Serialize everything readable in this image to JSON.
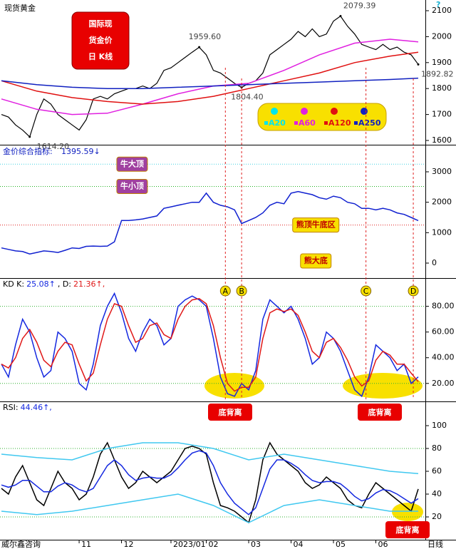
{
  "chart_data": [
    {
      "type": "line",
      "title": "现货黄金",
      "badge": [
        "国际现",
        "货金价",
        "日 K线"
      ],
      "ylim": [
        1583.5,
        2141.2
      ],
      "yticks": [
        1600,
        1700,
        1800,
        1900,
        2000,
        2100
      ],
      "series": [
        {
          "color": "#000000",
          "values": [
            1700,
            1690,
            1660,
            1640,
            1614,
            1700,
            1760,
            1740,
            1700,
            1680,
            1660,
            1640,
            1680,
            1760,
            1770,
            1760,
            1780,
            1790,
            1800,
            1800,
            1810,
            1800,
            1820,
            1870,
            1880,
            1900,
            1920,
            1940,
            1959,
            1930,
            1870,
            1860,
            1840,
            1820,
            1804,
            1820,
            1830,
            1860,
            1930,
            1950,
            1970,
            1990,
            2020,
            2000,
            2030,
            2000,
            2010,
            2060,
            2079,
            2040,
            2010,
            1970,
            1960,
            1950,
            1970,
            1950,
            1960,
            1940,
            1930,
            1893
          ]
        },
        {
          "color": "#e020e0",
          "x": [
            0,
            5,
            10,
            15,
            20,
            25,
            30,
            35,
            40,
            45,
            50,
            55,
            59
          ],
          "values": [
            1760,
            1720,
            1700,
            1705,
            1740,
            1780,
            1810,
            1820,
            1870,
            1930,
            1975,
            1990,
            1980
          ]
        },
        {
          "color": "#e01010",
          "x": [
            0,
            5,
            10,
            15,
            20,
            25,
            30,
            35,
            40,
            45,
            50,
            55,
            59
          ],
          "values": [
            1830,
            1790,
            1765,
            1750,
            1740,
            1750,
            1770,
            1800,
            1830,
            1860,
            1900,
            1925,
            1940
          ]
        },
        {
          "color": "#1020c0",
          "x": [
            0,
            5,
            10,
            15,
            20,
            25,
            30,
            35,
            40,
            45,
            50,
            55,
            59
          ],
          "values": [
            1830,
            1815,
            1805,
            1800,
            1800,
            1805,
            1810,
            1815,
            1820,
            1825,
            1830,
            1835,
            1840
          ]
        }
      ],
      "legend": [
        {
          "name": "A20",
          "color": "#00e5ee"
        },
        {
          "name": "A60",
          "color": "#e020e0"
        },
        {
          "name": "A120",
          "color": "#e01010"
        },
        {
          "name": "A250",
          "color": "#1020c0"
        }
      ],
      "annotations": [
        {
          "label": "1614.20",
          "x": 4,
          "value": 1614.2
        },
        {
          "label": "1959.60",
          "x": 28,
          "value": 1959.6
        },
        {
          "label": "1804.40",
          "x": 34,
          "value": 1804.4
        },
        {
          "label": "2079.39",
          "x": 48,
          "value": 2079.39
        },
        {
          "label": "1892.82",
          "x": 59,
          "value": 1892.82
        }
      ]
    },
    {
      "type": "line",
      "title": "金价综合指标:",
      "value_label": "1395.59↓",
      "ylim": [
        -492,
        3890
      ],
      "yticks": [
        0,
        1000,
        2000,
        3000
      ],
      "levels": [
        {
          "value": 3250,
          "color": "#40d0e0"
        },
        {
          "value": 2520,
          "color": "#20b020"
        },
        {
          "value": 1250,
          "color": "#e02020"
        }
      ],
      "series": [
        {
          "color": "#1020d0",
          "values": [
            500,
            450,
            400,
            380,
            300,
            350,
            400,
            380,
            350,
            420,
            500,
            480,
            550,
            560,
            550,
            560,
            700,
            1400,
            1400,
            1420,
            1450,
            1500,
            1550,
            1800,
            1850,
            1900,
            1950,
            2000,
            2000,
            2300,
            2000,
            1900,
            1850,
            1750,
            1300,
            1400,
            1500,
            1650,
            1900,
            2000,
            1950,
            2300,
            2350,
            2300,
            2250,
            2150,
            2100,
            2200,
            2150,
            2000,
            1950,
            1800,
            1800,
            1750,
            1800,
            1750,
            1650,
            1600,
            1500,
            1395.59
          ]
        }
      ],
      "annotations": [
        {
          "label": "牛大顶",
          "x": 18.5,
          "value": 3250
        },
        {
          "label": "牛小顶",
          "x": 18.5,
          "value": 2520
        },
        {
          "label": "熊顶牛底区",
          "x": 44.5,
          "value": 1250
        },
        {
          "label": "熊大底",
          "x": 44.5,
          "value": 70
        }
      ]
    },
    {
      "type": "line",
      "label_parts": [
        "KD K:",
        "25.08↑",
        ", D:",
        "21.36↑,"
      ],
      "ylim": [
        6,
        102
      ],
      "yticks": [
        {
          "value": 20,
          "label": "20.00"
        },
        {
          "value": 40,
          "label": "40.00"
        },
        {
          "value": 60,
          "label": "60.00"
        },
        {
          "value": 80,
          "label": "80.00"
        }
      ],
      "series": [
        {
          "color": "#1428e0",
          "values": [
            35,
            25,
            50,
            70,
            60,
            40,
            25,
            30,
            60,
            55,
            45,
            20,
            15,
            35,
            65,
            80,
            90,
            75,
            55,
            45,
            60,
            70,
            65,
            50,
            55,
            80,
            85,
            88,
            85,
            80,
            55,
            25,
            12,
            10,
            20,
            15,
            30,
            70,
            85,
            80,
            75,
            80,
            70,
            55,
            35,
            40,
            60,
            55,
            45,
            30,
            15,
            10,
            25,
            50,
            45,
            40,
            30,
            35,
            20,
            25.08
          ]
        },
        {
          "color": "#e01818",
          "values": [
            35,
            32,
            40,
            55,
            62,
            52,
            38,
            33,
            45,
            52,
            50,
            35,
            22,
            28,
            50,
            70,
            82,
            80,
            65,
            52,
            55,
            65,
            67,
            58,
            55,
            70,
            80,
            85,
            86,
            82,
            65,
            40,
            20,
            14,
            17,
            17,
            25,
            55,
            75,
            78,
            76,
            78,
            73,
            60,
            45,
            40,
            52,
            55,
            48,
            38,
            25,
            18,
            22,
            38,
            45,
            42,
            35,
            35,
            28,
            21.36
          ]
        }
      ],
      "markers": [
        {
          "label": "A",
          "x": 31.7
        },
        {
          "label": "B",
          "x": 34
        },
        {
          "label": "C",
          "x": 51.6
        },
        {
          "label": "D",
          "x": 58.3
        }
      ],
      "divergence_label": "底背离"
    },
    {
      "type": "line",
      "label_parts": [
        "RSI:",
        "44.46↑,"
      ],
      "ylim": [
        0,
        121.25
      ],
      "yticks": [
        20,
        40,
        60,
        80,
        100
      ],
      "series": [
        {
          "color": "#000000",
          "values": [
            45,
            40,
            55,
            65,
            50,
            35,
            30,
            45,
            60,
            50,
            45,
            35,
            40,
            55,
            75,
            85,
            70,
            55,
            45,
            50,
            60,
            55,
            50,
            55,
            60,
            70,
            80,
            82,
            80,
            75,
            50,
            30,
            28,
            25,
            20,
            15,
            35,
            70,
            85,
            75,
            70,
            65,
            60,
            50,
            45,
            48,
            55,
            50,
            45,
            35,
            30,
            28,
            40,
            50,
            45,
            40,
            35,
            30,
            25,
            44.46
          ]
        },
        {
          "color": "#1428e0",
          "values": [
            48,
            46,
            48,
            52,
            52,
            47,
            42,
            42,
            47,
            50,
            48,
            44,
            42,
            45,
            55,
            65,
            70,
            65,
            57,
            52,
            54,
            55,
            54,
            54,
            57,
            63,
            70,
            76,
            78,
            76,
            65,
            50,
            40,
            32,
            27,
            22,
            28,
            45,
            62,
            70,
            70,
            67,
            63,
            57,
            52,
            50,
            51,
            51,
            49,
            44,
            38,
            34,
            36,
            41,
            44,
            43,
            40,
            36,
            32,
            36
          ]
        },
        {
          "color": "#40c8f0",
          "x": [
            0,
            5,
            10,
            15,
            20,
            25,
            30,
            35,
            40,
            45,
            50,
            55,
            59
          ],
          "values": [
            75,
            72,
            70,
            80,
            85,
            85,
            80,
            70,
            75,
            70,
            65,
            60,
            58
          ]
        },
        {
          "color": "#40c8f0",
          "x": [
            0,
            5,
            10,
            15,
            20,
            25,
            30,
            35,
            40,
            45,
            50,
            55,
            59
          ],
          "values": [
            25,
            22,
            25,
            30,
            35,
            40,
            30,
            15,
            30,
            35,
            30,
            25,
            25
          ]
        }
      ],
      "xticks": [
        {
          "value": 11,
          "label": "11"
        },
        {
          "value": 17,
          "label": "12"
        },
        {
          "value": 24,
          "label": "2023/01"
        },
        {
          "value": 29,
          "label": "02"
        },
        {
          "value": 35,
          "label": "03"
        },
        {
          "value": 41,
          "label": "04"
        },
        {
          "value": 47,
          "label": "05"
        },
        {
          "value": 53,
          "label": "06"
        }
      ],
      "period": "日线",
      "source": "威尔鑫咨询"
    }
  ]
}
